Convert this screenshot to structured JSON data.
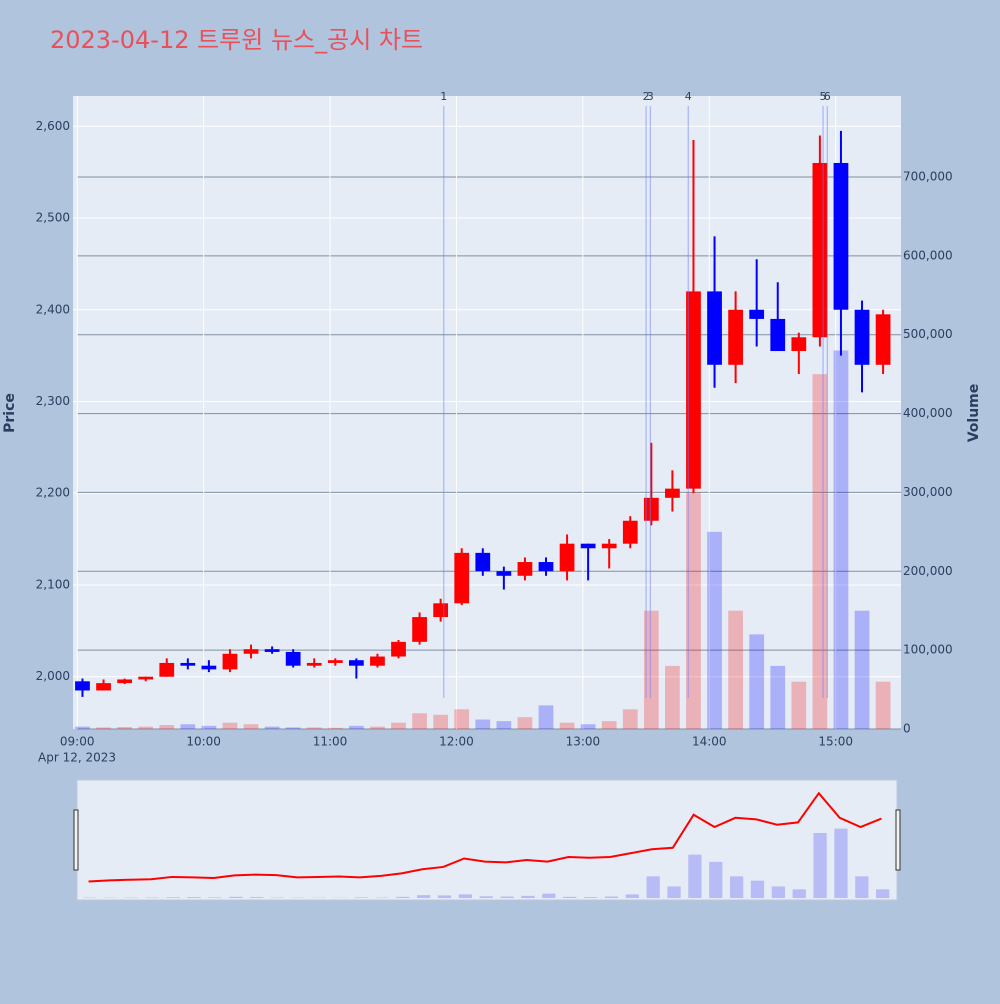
{
  "chart_data": {
    "type": "candlestick",
    "title": "2023-04-12 트루윈 뉴스_공시 차트",
    "x_date_label": "Apr 12, 2023",
    "y_label": "Price",
    "y2_label": "Volume",
    "x": [
      "09:00",
      "09:10",
      "09:20",
      "09:30",
      "09:40",
      "09:50",
      "10:00",
      "10:10",
      "10:20",
      "10:30",
      "10:40",
      "10:50",
      "11:00",
      "11:10",
      "11:20",
      "11:30",
      "11:40",
      "11:50",
      "12:00",
      "12:10",
      "12:20",
      "12:30",
      "12:40",
      "12:50",
      "13:00",
      "13:10",
      "13:20",
      "13:30",
      "13:40",
      "13:50",
      "14:00",
      "14:10",
      "14:20",
      "14:30",
      "14:40",
      "14:50",
      "15:00",
      "15:10",
      "15:20"
    ],
    "open": [
      1995,
      1985,
      1993,
      1997,
      2000,
      2015,
      2012,
      2008,
      2025,
      2030,
      2027,
      2012,
      2015,
      2018,
      2012,
      2022,
      2038,
      2065,
      2080,
      2135,
      2115,
      2110,
      2125,
      2115,
      2145,
      2140,
      2145,
      2170,
      2195,
      2205,
      2420,
      2340,
      2400,
      2390,
      2355,
      2370,
      2560,
      2400,
      2340
    ],
    "high": [
      1998,
      1997,
      1998,
      2000,
      2020,
      2020,
      2018,
      2030,
      2035,
      2033,
      2030,
      2020,
      2020,
      2020,
      2025,
      2040,
      2070,
      2085,
      2140,
      2140,
      2120,
      2130,
      2130,
      2155,
      2145,
      2150,
      2175,
      2255,
      2225,
      2585,
      2480,
      2420,
      2455,
      2430,
      2375,
      2590,
      2595,
      2410,
      2400
    ],
    "low": [
      1978,
      1985,
      1992,
      1995,
      2000,
      2008,
      2005,
      2005,
      2020,
      2025,
      2010,
      2010,
      2012,
      1998,
      2010,
      2020,
      2035,
      2060,
      2078,
      2110,
      2095,
      2105,
      2110,
      2105,
      2105,
      2118,
      2140,
      2165,
      2180,
      2200,
      2315,
      2320,
      2360,
      2360,
      2330,
      2360,
      2350,
      2310,
      2330
    ],
    "close": [
      1985,
      1993,
      1997,
      2000,
      2015,
      2012,
      2008,
      2025,
      2030,
      2027,
      2012,
      2015,
      2018,
      2012,
      2022,
      2038,
      2065,
      2080,
      2135,
      2115,
      2110,
      2125,
      2115,
      2145,
      2140,
      2145,
      2170,
      2195,
      2205,
      2420,
      2340,
      2400,
      2390,
      2355,
      2370,
      2560,
      2400,
      2340,
      2395
    ],
    "volume": [
      3000,
      2000,
      2500,
      3000,
      5000,
      6000,
      4000,
      8000,
      6000,
      3000,
      2000,
      2000,
      1500,
      4000,
      3000,
      8000,
      20000,
      18000,
      25000,
      12000,
      10000,
      15000,
      30000,
      8000,
      6000,
      10000,
      25000,
      150000,
      80000,
      300000,
      250000,
      150000,
      120000,
      80000,
      60000,
      450000,
      480000,
      150000,
      60000
    ],
    "up_color": "#ff0000",
    "down_color": "#0000ff",
    "news_labels": [
      "1",
      "2",
      "3",
      "4",
      "5",
      "6"
    ],
    "news_x": [
      "11:54",
      "13:30",
      "13:32",
      "13:50",
      "14:54",
      "14:56"
    ],
    "xlim": [
      "08:58",
      "15:31"
    ],
    "xticks": [
      "09:00",
      "10:00",
      "11:00",
      "12:00",
      "13:00",
      "14:00",
      "15:00"
    ],
    "ylim": [
      1943,
      2633
    ],
    "yticks": [
      {
        "value": 2000,
        "label": "2,000"
      },
      {
        "value": 2100,
        "label": "2,100"
      },
      {
        "value": 2200,
        "label": "2,200"
      },
      {
        "value": 2300,
        "label": "2,300"
      },
      {
        "value": 2400,
        "label": "2,400"
      },
      {
        "value": 2500,
        "label": "2,500"
      },
      {
        "value": 2600,
        "label": "2,600"
      }
    ],
    "y2lim": [
      0,
      802700
    ],
    "y2ticks": [
      0,
      {
        "value": 100000,
        "label": "100,000"
      },
      {
        "value": 200000,
        "label": "200,000"
      },
      {
        "value": 300000,
        "label": "300,000"
      },
      {
        "value": 400000,
        "label": "400,000"
      },
      {
        "value": 500000,
        "label": "500,000"
      },
      {
        "value": 600000,
        "label": "600,000"
      },
      {
        "value": 700000,
        "label": "700,000"
      }
    ]
  }
}
